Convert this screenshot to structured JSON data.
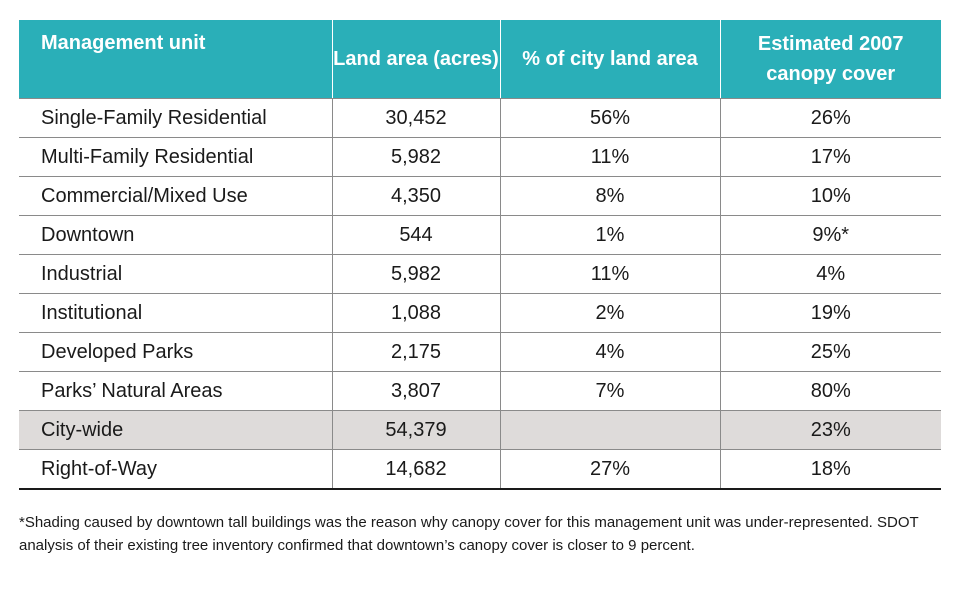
{
  "table": {
    "headers": [
      "Management unit",
      "Land area (acres)",
      "% of city land area",
      "Estimated 2007 canopy cover"
    ],
    "rows": [
      {
        "unit": "Single-Family Residential",
        "land_area": "30,452",
        "pct_city": "56%",
        "canopy": "26%",
        "shaded": false
      },
      {
        "unit": "Multi-Family Residential",
        "land_area": "5,982",
        "pct_city": "11%",
        "canopy": "17%",
        "shaded": false
      },
      {
        "unit": "Commercial/Mixed Use",
        "land_area": "4,350",
        "pct_city": "8%",
        "canopy": "10%",
        "shaded": false
      },
      {
        "unit": "Downtown",
        "land_area": "544",
        "pct_city": "1%",
        "canopy": "9%*",
        "shaded": false
      },
      {
        "unit": "Industrial",
        "land_area": "5,982",
        "pct_city": "11%",
        "canopy": "4%",
        "shaded": false
      },
      {
        "unit": "Institutional",
        "land_area": "1,088",
        "pct_city": "2%",
        "canopy": "19%",
        "shaded": false
      },
      {
        "unit": "Developed Parks",
        "land_area": "2,175",
        "pct_city": "4%",
        "canopy": "25%",
        "shaded": false
      },
      {
        "unit": "Parks’ Natural Areas",
        "land_area": "3,807",
        "pct_city": "7%",
        "canopy": "80%",
        "shaded": false
      },
      {
        "unit": "City-wide",
        "land_area": "54,379",
        "pct_city": "",
        "canopy": "23%",
        "shaded": true
      },
      {
        "unit": "Right-of-Way",
        "land_area": "14,682",
        "pct_city": "27%",
        "canopy": "18%",
        "shaded": false
      }
    ]
  },
  "footnote": "*Shading caused by downtown tall buildings was the reason why canopy cover for this management unit was under-represented. SDOT analysis of their existing tree inventory confirmed that downtown’s canopy cover is closer to 9 percent.",
  "colors": {
    "header_bg": "#2aafb8",
    "header_text": "#ffffff",
    "shaded_row_bg": "#dedbda"
  }
}
